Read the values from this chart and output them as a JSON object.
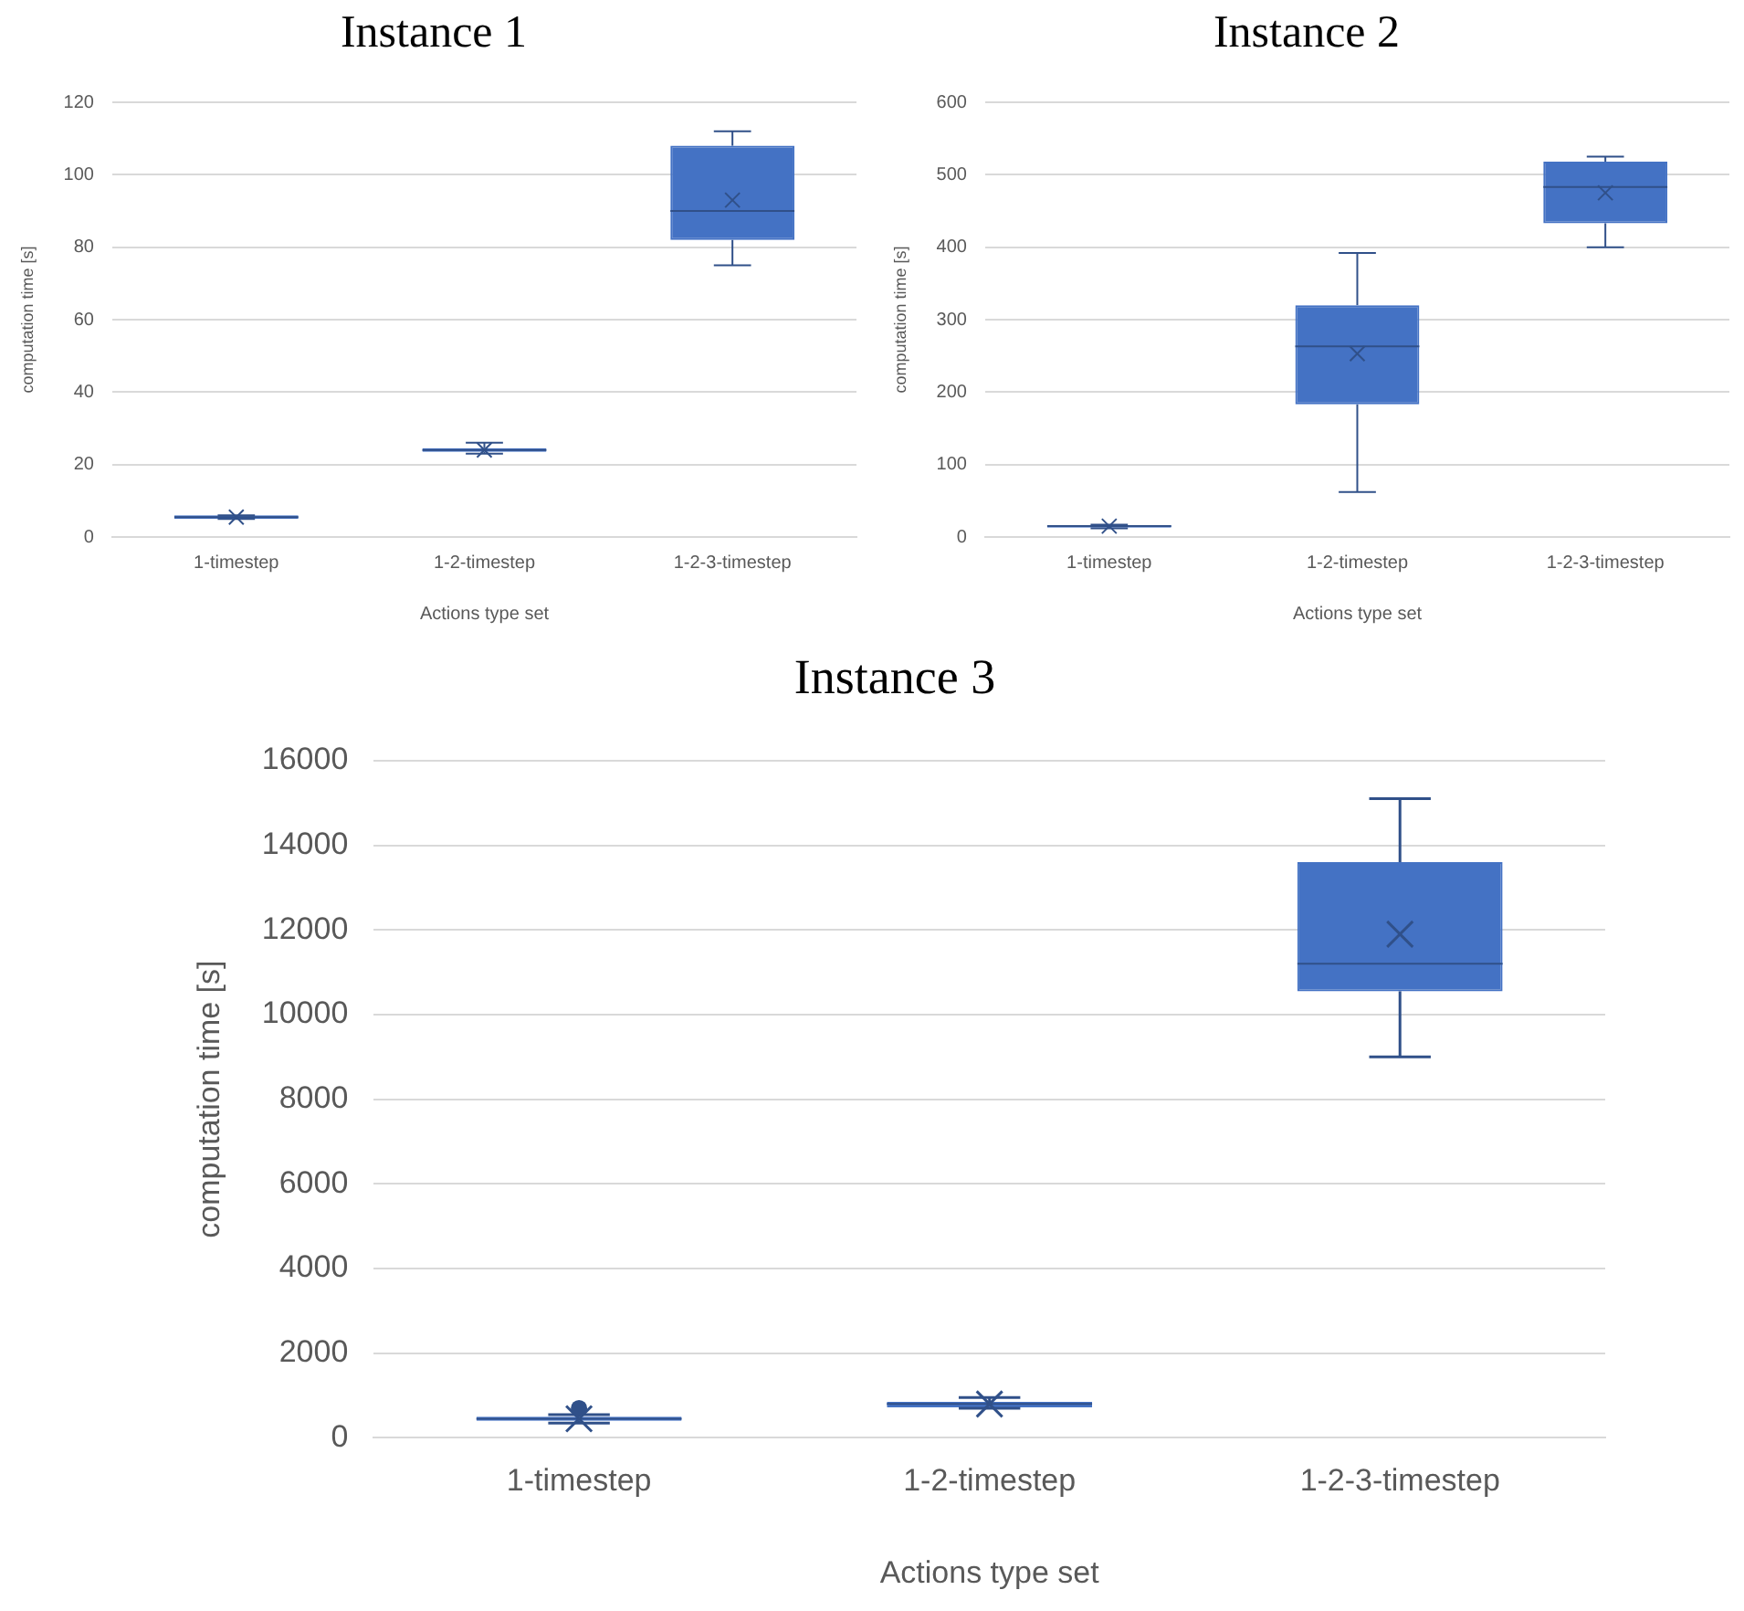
{
  "chart_data": [
    {
      "type": "box",
      "title": "Instance 1",
      "xlabel": "Actions type set",
      "ylabel": "computation time [s]",
      "categories": [
        "1-timestep",
        "1-2-timestep",
        "1-2-3-timestep"
      ],
      "color": "#4472c4",
      "ylim": [
        0,
        120
      ],
      "yticks": [
        0,
        20,
        40,
        60,
        80,
        100,
        120
      ],
      "grid": "y",
      "boxes": [
        {
          "low": 5,
          "q1": 5,
          "median": 5.5,
          "q3": 6,
          "high": 6,
          "mean": 5.5
        },
        {
          "low": 23,
          "q1": 23.5,
          "median": 24,
          "q3": 24.5,
          "high": 26,
          "mean": 24
        },
        {
          "low": 75,
          "q1": 82,
          "median": 90,
          "q3": 108,
          "high": 112,
          "mean": 93
        }
      ]
    },
    {
      "type": "box",
      "title": "Instance 2",
      "xlabel": "Actions type set",
      "ylabel": "computation time [s]",
      "categories": [
        "1-timestep",
        "1-2-timestep",
        "1-2-3-timestep"
      ],
      "color": "#4472c4",
      "ylim": [
        0,
        600
      ],
      "yticks": [
        0,
        100,
        200,
        300,
        400,
        500,
        600
      ],
      "grid": "y",
      "boxes": [
        {
          "low": 12,
          "q1": 13,
          "median": 15,
          "q3": 16,
          "high": 17,
          "mean": 15
        },
        {
          "low": 62,
          "q1": 183,
          "median": 263,
          "q3": 320,
          "high": 392,
          "mean": 253
        },
        {
          "low": 400,
          "q1": 433,
          "median": 483,
          "q3": 518,
          "high": 525,
          "mean": 475
        }
      ]
    },
    {
      "type": "box",
      "title": "Instance 3",
      "xlabel": "Actions type set",
      "ylabel": "computation time [s]",
      "categories": [
        "1-timestep",
        "1-2-timestep",
        "1-2-3-timestep"
      ],
      "color": "#4472c4",
      "ylim": [
        0,
        16000
      ],
      "yticks": [
        0,
        2000,
        4000,
        6000,
        8000,
        10000,
        12000,
        14000,
        16000
      ],
      "grid": "y",
      "boxes": [
        {
          "low": 350,
          "q1": 400,
          "median": 450,
          "q3": 500,
          "high": 550,
          "mean": 450,
          "outliers": [
            700
          ]
        },
        {
          "low": 700,
          "q1": 720,
          "median": 800,
          "q3": 850,
          "high": 950,
          "mean": 800
        },
        {
          "low": 9000,
          "q1": 10550,
          "median": 11200,
          "q3": 13600,
          "high": 15100,
          "mean": 11900
        }
      ]
    }
  ]
}
